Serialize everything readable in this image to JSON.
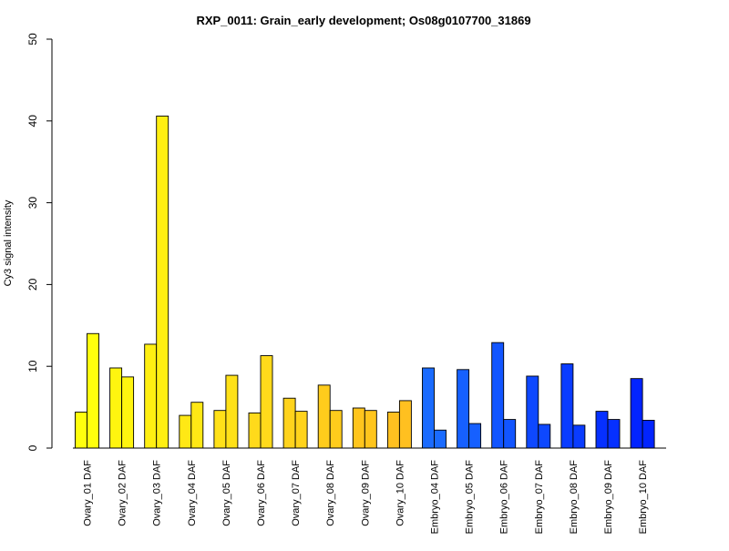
{
  "chart_data": {
    "type": "bar",
    "title": "RXP_0011: Grain_early development; Os08g0107700_31869",
    "ylabel": "Cy3 signal intensity",
    "xlabel": "",
    "ylim": [
      0,
      50
    ],
    "yticks": [
      0,
      10,
      20,
      30,
      40,
      50
    ],
    "grid": false,
    "legend": "none",
    "categories": [
      "Ovary_01 DAF",
      "Ovary_02 DAF",
      "Ovary_03 DAF",
      "Ovary_04 DAF",
      "Ovary_05 DAF",
      "Ovary_06 DAF",
      "Ovary_07 DAF",
      "Ovary_08 DAF",
      "Ovary_09 DAF",
      "Ovary_10 DAF",
      "Embryo_04 DAF",
      "Embryo_05 DAF",
      "Embryo_06 DAF",
      "Embryo_07 DAF",
      "Embryo_08 DAF",
      "Embryo_09 DAF",
      "Embryo_10 DAF"
    ],
    "colors": [
      "#ffff0d",
      "#fff50f",
      "#ffef12",
      "#ffe815",
      "#ffe118",
      "#ffda1b",
      "#ffd31c",
      "#ffcc1c",
      "#ffc51d",
      "#ffc020",
      "#1a6bff",
      "#1660ff",
      "#1255ff",
      "#0e48ff",
      "#0a3cff",
      "#0630ff",
      "#0224ff"
    ],
    "series": [
      {
        "values": [
          4.4,
          9.8,
          12.7,
          4.0,
          4.6,
          4.3,
          6.1,
          7.7,
          4.9,
          4.4,
          9.8,
          9.6,
          12.9,
          8.8,
          10.3,
          4.5,
          8.5
        ]
      },
      {
        "values": [
          14.0,
          8.7,
          40.6,
          5.6,
          8.9,
          11.3,
          4.5,
          4.6,
          4.6,
          5.8,
          2.2,
          3.0,
          3.5,
          2.9,
          2.8,
          3.5,
          3.4
        ]
      }
    ]
  }
}
